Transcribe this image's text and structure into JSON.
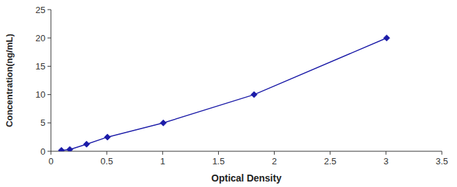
{
  "chart_data": {
    "type": "line",
    "x": [
      0.094,
      0.169,
      0.319,
      0.506,
      1.006,
      1.819,
      3.006
    ],
    "values": [
      0.156,
      0.313,
      1.25,
      2.5,
      5.0,
      10.0,
      20.0
    ],
    "xlabel": "Optical Density",
    "ylabel": "Concentration(ng/mL)",
    "xlim": [
      0,
      3.5
    ],
    "ylim": [
      0,
      25
    ],
    "xticks": [
      0,
      0.5,
      1,
      1.5,
      2,
      2.5,
      3,
      3.5
    ],
    "yticks": [
      0,
      5,
      10,
      15,
      20,
      25
    ],
    "color": "#1c1ca8",
    "marker": "diamond",
    "grid": false
  }
}
